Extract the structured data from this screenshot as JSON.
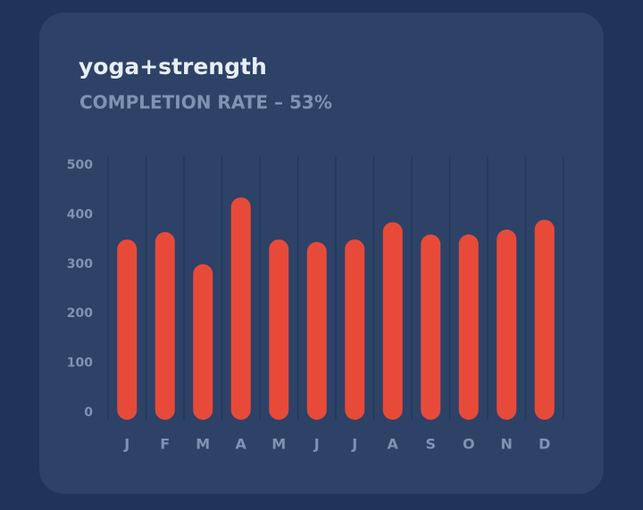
{
  "chart_data": {
    "type": "bar",
    "title": "yoga+strength",
    "subtitle": "COMPLETION RATE – 53%",
    "categories": [
      "J",
      "F",
      "M",
      "A",
      "M",
      "J",
      "J",
      "A",
      "S",
      "O",
      "N",
      "D"
    ],
    "values": [
      350,
      365,
      300,
      435,
      350,
      345,
      350,
      385,
      360,
      360,
      370,
      390
    ],
    "color": "#e84a3a",
    "ylim": [
      0,
      500
    ],
    "yticks": [
      0,
      100,
      200,
      300,
      400,
      500
    ],
    "grid": false
  }
}
